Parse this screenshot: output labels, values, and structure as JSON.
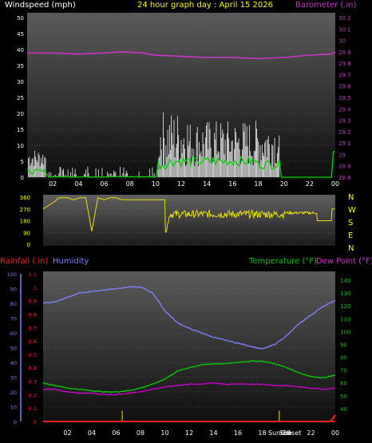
{
  "header": {
    "left_label": "Windspeed (mph)",
    "center_label": "24 hour graph day : April 15 2026",
    "right_label": "Barometer (.in)"
  },
  "colors": {
    "background": "#000000",
    "plot_top": "#5a5a5a",
    "plot_bottom": "#111111",
    "windspeed": "#ffffff",
    "wind_avg": "#00d000",
    "wind_light": "#a8f0a8",
    "barometer": "#cc33cc",
    "direction": "#e8e000",
    "humidity": "#8080ff",
    "temperature": "#00cc00",
    "dewpoint": "#cc00cc",
    "rainfall": "#ff2020",
    "marker": "#d8c000"
  },
  "x_ticks": [
    "02",
    "04",
    "06",
    "08",
    "10",
    "12",
    "14",
    "16",
    "18",
    "20",
    "22",
    "00"
  ],
  "annotations": {
    "sunrise": "Sunrise",
    "sunset": "Sunset"
  },
  "chart_data": [
    {
      "type": "line",
      "title": "24 hour graph day : April 15 2026",
      "xlabel": "",
      "ylabel": "Windspeed (mph)",
      "y2label": "Barometer (.in)",
      "ylim": [
        0,
        50
      ],
      "y2lim": [
        28.8,
        30.2
      ],
      "y_ticks": [
        "0",
        "5",
        "10",
        "15",
        "20",
        "25",
        "30",
        "35",
        "40",
        "45",
        "50"
      ],
      "y2_ticks": [
        "28.8",
        "28.9",
        "29",
        "29.1",
        "29.2",
        "29.3",
        "29.4",
        "29.5",
        "29.6",
        "29.7",
        "29.8",
        "29.9",
        "30",
        "30.1",
        "30.2"
      ],
      "grid": true,
      "series": [
        {
          "name": "Barometer (.in)",
          "axis": "right",
          "x": [
            0,
            2,
            4,
            6,
            7.5,
            9,
            10,
            12,
            14,
            16,
            18,
            20,
            22,
            23.7,
            24
          ],
          "values": [
            29.89,
            29.89,
            29.88,
            29.89,
            29.9,
            29.89,
            29.87,
            29.86,
            29.85,
            29.85,
            29.84,
            29.85,
            29.87,
            29.88,
            29.9
          ]
        }
      ]
    },
    {
      "type": "line",
      "ylabel": "",
      "ylim": [
        0,
        360
      ],
      "y_ticks": [
        "0",
        "90",
        "180",
        "270",
        "360"
      ],
      "y2_ticks": [
        "N",
        "W",
        "S",
        "E",
        "N"
      ],
      "series": [
        {
          "name": "",
          "x": [
            0,
            0.5,
            1,
            1.3,
            1.5,
            2,
            2.5,
            3,
            3.5,
            4,
            4.5,
            5,
            5.5,
            6,
            6.5,
            7,
            8,
            9,
            10
          ],
          "values": [
            270,
            300,
            330,
            355,
            355,
            355,
            340,
            355,
            355,
            100,
            355,
            340,
            355,
            355,
            340,
            340,
            340,
            340,
            340
          ]
        }
      ]
    },
    {
      "type": "line",
      "y_left_label": "Rainfall (.in)",
      "y_left2_label": "Humidity",
      "y_right_label": "Temperature (°F)",
      "y_right2_label": "Dew Point (°F)",
      "humidity_ylim": [
        0,
        100
      ],
      "rain_ylim": [
        0,
        1.1
      ],
      "temp_ylim": [
        30,
        145
      ],
      "humidity_ticks": [
        "0",
        "10",
        "20",
        "30",
        "40",
        "50",
        "60",
        "70",
        "80",
        "90",
        "100"
      ],
      "rain_ticks": [
        "0",
        "0.1",
        "0.2",
        "0.3",
        "0.4",
        "0.5",
        "0.6",
        "0.7",
        "0.8",
        "0.9",
        "1",
        "1.1"
      ],
      "temp_ticks": [
        "40",
        "50",
        "60",
        "70",
        "80",
        "90",
        "100",
        "110",
        "120",
        "130",
        "140"
      ],
      "series": [
        {
          "name": "Humidity",
          "axis": "humidity",
          "x": [
            0,
            1,
            2,
            3,
            4,
            5,
            6,
            7,
            8,
            9,
            10,
            11,
            12,
            13,
            14,
            15,
            16,
            17,
            18,
            19,
            20,
            21,
            22,
            23,
            24
          ],
          "values": [
            80,
            81,
            84,
            87,
            88,
            89,
            90,
            91,
            91,
            87,
            75,
            67,
            63,
            60,
            57,
            55,
            53,
            51,
            49,
            52,
            58,
            66,
            72,
            78,
            82
          ]
        },
        {
          "name": "Temperature (°F)",
          "axis": "temp",
          "x": [
            0,
            1,
            2,
            3,
            4,
            5,
            6,
            7,
            8,
            9,
            10,
            11,
            12,
            13,
            14,
            15,
            16,
            17,
            18,
            19,
            20,
            21,
            22,
            23,
            24
          ],
          "values": [
            60,
            58,
            56,
            55,
            54,
            53,
            53,
            54,
            56,
            59,
            63,
            69,
            72,
            74,
            75,
            75,
            76,
            77,
            77,
            75,
            72,
            68,
            65,
            64,
            66
          ]
        },
        {
          "name": "Dew Point (°F)",
          "axis": "temp",
          "x": [
            0,
            1,
            2,
            3,
            4,
            5,
            6,
            7,
            8,
            9,
            10,
            11,
            12,
            13,
            14,
            15,
            16,
            17,
            18,
            19,
            20,
            21,
            22,
            23,
            24
          ],
          "values": [
            55,
            55,
            53,
            52,
            52,
            51,
            51,
            52,
            53,
            55,
            57,
            58,
            59,
            59,
            60,
            59,
            59,
            59,
            59,
            58,
            58,
            57,
            56,
            55,
            56
          ]
        },
        {
          "name": "Rainfall (.in)",
          "axis": "rain",
          "x": [
            0,
            23.6,
            23.8,
            24
          ],
          "values": [
            0,
            0,
            0.02,
            0.05
          ]
        }
      ],
      "markers_x": [
        6.5,
        19.4
      ]
    }
  ]
}
